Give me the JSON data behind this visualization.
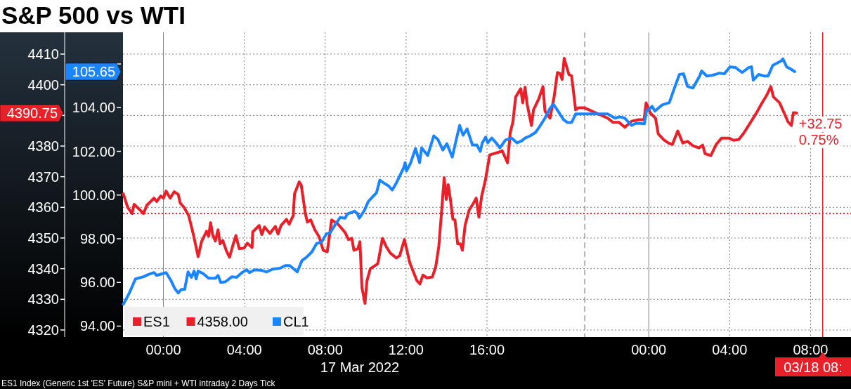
{
  "chart_data": {
    "type": "line",
    "title": "S&P 500 vs WTI",
    "xlabel": "17 Mar 2022",
    "xlim": [
      "2022-03-16T22:00",
      "2022-03-18T10:00"
    ],
    "xticks": [
      {
        "value": "2022-03-17T00:00",
        "label": "00:00"
      },
      {
        "value": "2022-03-17T04:00",
        "label": "04:00"
      },
      {
        "value": "2022-03-17T08:00",
        "label": "08:00"
      },
      {
        "value": "2022-03-17T12:00",
        "label": "12:00"
      },
      {
        "value": "2022-03-17T16:00",
        "label": "16:00"
      },
      {
        "value": "2022-03-18T00:00",
        "label": "00:00"
      },
      {
        "value": "2022-03-18T04:00",
        "label": "04:00"
      },
      {
        "value": "2022-03-18T08:00",
        "label": "08:00"
      }
    ],
    "ylim": [
      4317.7,
      4417.1
    ],
    "yticks": [
      4320,
      4330,
      4340,
      4350,
      4360,
      4370,
      4380,
      {
        "value": 4390,
        "label": null
      },
      4400,
      4410
    ],
    "y2lim": [
      93.5,
      107.45
    ],
    "y2ticks": [
      {
        "value": 94,
        "label": "94.00"
      },
      {
        "value": 96,
        "label": "96.00"
      },
      {
        "value": 98,
        "label": "98.00"
      },
      {
        "value": 100,
        "label": "100.00"
      },
      {
        "value": 102,
        "label": "102.00"
      },
      {
        "value": 104,
        "label": "104.00"
      },
      {
        "value": 106,
        "label": null
      }
    ],
    "grid": true,
    "legend": "bottom left",
    "line_style": "solid",
    "marker": "none",
    "series": [
      {
        "name": "ES1",
        "color": "#e8202a",
        "x": [
          "2022-03-16T22:01",
          "2022-03-16T22:14",
          "2022-03-16T22:27",
          "2022-03-16T22:33",
          "2022-03-16T22:51",
          "2022-03-16T23:01",
          "2022-03-16T23:11",
          "2022-03-16T23:32",
          "2022-03-16T23:40",
          "2022-03-16T23:52",
          "2022-03-17T00:00",
          "2022-03-17T00:08",
          "2022-03-17T00:20",
          "2022-03-17T00:32",
          "2022-03-17T00:44",
          "2022-03-17T00:50",
          "2022-03-17T01:01",
          "2022-03-17T01:15",
          "2022-03-17T01:29",
          "2022-03-17T01:43",
          "2022-03-17T01:53",
          "2022-03-17T02:08",
          "2022-03-17T02:14",
          "2022-03-17T02:20",
          "2022-03-17T02:26",
          "2022-03-17T02:34",
          "2022-03-17T02:42",
          "2022-03-17T02:48",
          "2022-03-17T02:56",
          "2022-03-17T03:07",
          "2022-03-17T03:16",
          "2022-03-17T03:26",
          "2022-03-17T03:35",
          "2022-03-17T03:45",
          "2022-03-17T03:59",
          "2022-03-17T04:09",
          "2022-03-17T04:23",
          "2022-03-17T04:25",
          "2022-03-17T04:44",
          "2022-03-17T04:52",
          "2022-03-17T05:00",
          "2022-03-17T05:16",
          "2022-03-17T05:32",
          "2022-03-17T05:40",
          "2022-03-17T05:49",
          "2022-03-17T06:05",
          "2022-03-17T06:13",
          "2022-03-17T06:25",
          "2022-03-17T06:29",
          "2022-03-17T06:43",
          "2022-03-17T06:49",
          "2022-03-17T07:01",
          "2022-03-17T07:07",
          "2022-03-17T07:17",
          "2022-03-17T07:29",
          "2022-03-17T07:42",
          "2022-03-17T07:54",
          "2022-03-17T08:06",
          "2022-03-17T08:19",
          "2022-03-17T08:38",
          "2022-03-17T08:59",
          "2022-03-17T09:09",
          "2022-03-17T09:19",
          "2022-03-17T09:25",
          "2022-03-17T09:37",
          "2022-03-17T09:43",
          "2022-03-17T09:49",
          "2022-03-17T09:58",
          "2022-03-17T10:04",
          "2022-03-17T10:14",
          "2022-03-17T10:36",
          "2022-03-17T10:50",
          "2022-03-17T11:01",
          "2022-03-17T11:13",
          "2022-03-17T11:31",
          "2022-03-17T11:41",
          "2022-03-17T11:55",
          "2022-03-17T12:11",
          "2022-03-17T12:32",
          "2022-03-17T12:41",
          "2022-03-17T12:50",
          "2022-03-17T13:02",
          "2022-03-17T13:18",
          "2022-03-17T13:28",
          "2022-03-17T13:37",
          "2022-03-17T13:44",
          "2022-03-17T13:53",
          "2022-03-17T13:59",
          "2022-03-17T14:05",
          "2022-03-17T14:11",
          "2022-03-17T14:19",
          "2022-03-17T14:25",
          "2022-03-17T14:33",
          "2022-03-17T14:41",
          "2022-03-17T14:47",
          "2022-03-17T14:55",
          "2022-03-17T15:07",
          "2022-03-17T15:20",
          "2022-03-17T15:28",
          "2022-03-17T15:36",
          "2022-03-17T15:44",
          "2022-03-17T15:56",
          "2022-03-17T16:08",
          "2022-03-17T16:35",
          "2022-03-17T16:45",
          "2022-03-17T17:01",
          "2022-03-17T17:09",
          "2022-03-17T17:17",
          "2022-03-17T17:25",
          "2022-03-17T17:40",
          "2022-03-17T17:46",
          "2022-03-17T17:53",
          "2022-03-17T17:59",
          "2022-03-17T18:12",
          "2022-03-17T18:18",
          "2022-03-17T18:34",
          "2022-03-17T18:46",
          "2022-03-17T18:52",
          "2022-03-17T19:07",
          "2022-03-17T19:19",
          "2022-03-17T19:29",
          "2022-03-17T19:37",
          "2022-03-17T19:43",
          "2022-03-17T19:49",
          "2022-03-17T20:03",
          "2022-03-17T20:11",
          "2022-03-17T20:23",
          "2022-03-17T20:32",
          "2022-03-17T20:48",
          "2022-03-17T21:58",
          "2022-03-17T22:14",
          "2022-03-17T22:32",
          "2022-03-17T22:49",
          "2022-03-17T23:09",
          "2022-03-17T23:29",
          "2022-03-17T23:46",
          "2022-03-17T23:52",
          "2022-03-18T00:05",
          "2022-03-18T00:20",
          "2022-03-18T00:28",
          "2022-03-18T00:44",
          "2022-03-18T00:58",
          "2022-03-18T01:10",
          "2022-03-18T01:26",
          "2022-03-18T01:41",
          "2022-03-18T01:55",
          "2022-03-18T02:11",
          "2022-03-18T02:29",
          "2022-03-18T02:40",
          "2022-03-18T02:47",
          "2022-03-18T03:04",
          "2022-03-18T03:20",
          "2022-03-18T03:36",
          "2022-03-18T03:58",
          "2022-03-18T04:11",
          "2022-03-18T04:27",
          "2022-03-18T04:43",
          "2022-03-18T04:59",
          "2022-03-18T05:20",
          "2022-03-18T05:34",
          "2022-03-18T05:50",
          "2022-03-18T06:02",
          "2022-03-18T06:10",
          "2022-03-18T06:28",
          "2022-03-18T06:44",
          "2022-03-18T06:53",
          "2022-03-18T07:03",
          "2022-03-18T07:09",
          "2022-03-18T07:19"
        ],
        "values": [
          4364.4,
          4360.0,
          4358.0,
          4361.0,
          4359.1,
          4358.0,
          4360.7,
          4363.0,
          4361.9,
          4363.7,
          4363.0,
          4365.3,
          4363.0,
          4365.1,
          4364.2,
          4361.4,
          4360.0,
          4357.3,
          4351.1,
          4343.9,
          4348.8,
          4352.2,
          4350.6,
          4355.0,
          4351.1,
          4349.0,
          4352.7,
          4348.1,
          4349.2,
          4345.8,
          4343.7,
          4347.6,
          4350.8,
          4346.5,
          4346.7,
          4348.3,
          4346.9,
          4352.0,
          4354.1,
          4351.1,
          4353.6,
          4351.5,
          4353.8,
          4351.3,
          4354.1,
          4356.1,
          4354.5,
          4357.3,
          4364.4,
          4368.3,
          4367.2,
          4358.0,
          4355.2,
          4355.9,
          4352.7,
          4350.4,
          4346.0,
          4345.5,
          4355.9,
          4354.5,
          4351.8,
          4349.5,
          4349.9,
          4346.0,
          4346.5,
          4348.8,
          4333.8,
          4328.7,
          4336.1,
          4340.0,
          4341.6,
          4349.9,
          4347.2,
          4345.1,
          4343.5,
          4344.2,
          4349.5,
          4341.9,
          4336.1,
          4335.0,
          4337.9,
          4337.0,
          4337.3,
          4340.7,
          4347.2,
          4356.8,
          4369.7,
          4362.6,
          4367.4,
          4363.0,
          4356.1,
          4355.9,
          4348.1,
          4348.1,
          4346.0,
          4354.1,
          4359.1,
          4361.4,
          4363.0,
          4356.8,
          4363.5,
          4369.3,
          4377.1,
          4378.0,
          4378.5,
          4374.5,
          4384.4,
          4387.9,
          4396.0,
          4398.7,
          4394.1,
          4399.2,
          4393.7,
          4386.7,
          4391.8,
          4395.5,
          4399.4,
          4391.4,
          4389.1,
          4396.0,
          4404.0,
          4403.6,
          4401.7,
          4408.6,
          4403.3,
          4402.9,
          4391.8,
          4392.5,
          4392.5,
          4389.1,
          4387.7,
          4387.7,
          4386.1,
          4388.1,
          4388.6,
          4388.6,
          4394.1,
          4390.7,
          4389.1,
          4384.0,
          4382.1,
          4381.0,
          4380.5,
          4384.9,
          4381.0,
          4381.5,
          4380.1,
          4379.4,
          4380.3,
          4377.5,
          4376.9,
          4380.5,
          4382.6,
          4382.6,
          4381.9,
          4382.1,
          4384.4,
          4387.2,
          4390.9,
          4393.7,
          4396.6,
          4399.4,
          4396.0,
          4394.1,
          4390.2,
          4387.9,
          4386.7,
          4390.9,
          4390.75
        ]
      },
      {
        "name": "CL1",
        "color": "#1a85ff",
        "axis": "y2",
        "x": [
          "2022-03-16T22:01",
          "2022-03-16T22:19",
          "2022-03-16T22:37",
          "2022-03-16T23:01",
          "2022-03-16T23:13",
          "2022-03-16T23:32",
          "2022-03-16T23:40",
          "2022-03-17T00:08",
          "2022-03-17T00:22",
          "2022-03-17T00:34",
          "2022-03-17T00:44",
          "2022-03-17T00:53",
          "2022-03-17T01:03",
          "2022-03-17T01:13",
          "2022-03-17T01:23",
          "2022-03-17T01:31",
          "2022-03-17T01:37",
          "2022-03-17T01:43",
          "2022-03-17T01:59",
          "2022-03-17T02:14",
          "2022-03-17T02:34",
          "2022-03-17T02:42",
          "2022-03-17T02:50",
          "2022-03-17T03:04",
          "2022-03-17T03:23",
          "2022-03-17T03:37",
          "2022-03-17T03:53",
          "2022-03-17T04:07",
          "2022-03-17T04:15",
          "2022-03-17T04:31",
          "2022-03-17T04:52",
          "2022-03-17T05:06",
          "2022-03-17T05:24",
          "2022-03-17T05:46",
          "2022-03-17T06:01",
          "2022-03-17T06:15",
          "2022-03-17T06:37",
          "2022-03-17T06:51",
          "2022-03-17T07:05",
          "2022-03-17T07:20",
          "2022-03-17T07:34",
          "2022-03-17T07:50",
          "2022-03-17T08:04",
          "2022-03-17T08:14",
          "2022-03-17T08:31",
          "2022-03-17T08:44",
          "2022-03-17T08:59",
          "2022-03-17T09:05",
          "2022-03-17T09:27",
          "2022-03-17T09:35",
          "2022-03-17T09:41",
          "2022-03-17T09:56",
          "2022-03-17T10:08",
          "2022-03-17T10:22",
          "2022-03-17T10:32",
          "2022-03-17T10:42",
          "2022-03-17T10:54",
          "2022-03-17T11:08",
          "2022-03-17T11:19",
          "2022-03-17T11:31",
          "2022-03-17T11:41",
          "2022-03-17T11:53",
          "2022-03-17T11:57",
          "2022-03-17T12:01",
          "2022-03-17T12:13",
          "2022-03-17T12:28",
          "2022-03-17T12:40",
          "2022-03-17T12:46",
          "2022-03-17T13:04",
          "2022-03-17T13:22",
          "2022-03-17T13:34",
          "2022-03-17T13:49",
          "2022-03-17T14:01",
          "2022-03-17T14:17",
          "2022-03-17T14:31",
          "2022-03-17T14:39",
          "2022-03-17T14:49",
          "2022-03-17T15:01",
          "2022-03-17T15:17",
          "2022-03-17T15:30",
          "2022-03-17T15:40",
          "2022-03-17T15:46",
          "2022-03-17T15:56",
          "2022-03-17T16:02",
          "2022-03-17T16:14",
          "2022-03-17T16:29",
          "2022-03-17T16:38",
          "2022-03-17T16:55",
          "2022-03-17T17:13",
          "2022-03-17T17:29",
          "2022-03-17T17:43",
          "2022-03-17T17:53",
          "2022-03-17T18:08",
          "2022-03-17T18:24",
          "2022-03-17T18:36",
          "2022-03-17T18:52",
          "2022-03-17T19:07",
          "2022-03-17T19:17",
          "2022-03-17T19:31",
          "2022-03-17T19:47",
          "2022-03-17T19:59",
          "2022-03-17T20:11",
          "2022-03-17T20:23",
          "2022-03-17T20:38",
          "2022-03-17T21:58",
          "2022-03-17T22:20",
          "2022-03-17T22:34",
          "2022-03-17T22:49",
          "2022-03-17T23:09",
          "2022-03-17T23:23",
          "2022-03-17T23:47",
          "2022-03-17T23:53",
          "2022-03-18T00:10",
          "2022-03-18T00:18",
          "2022-03-18T00:40",
          "2022-03-18T01:01",
          "2022-03-18T01:17",
          "2022-03-18T01:31",
          "2022-03-18T01:43",
          "2022-03-18T01:55",
          "2022-03-18T02:11",
          "2022-03-18T02:31",
          "2022-03-18T02:37",
          "2022-03-18T02:52",
          "2022-03-18T03:08",
          "2022-03-18T03:30",
          "2022-03-18T03:44",
          "2022-03-18T04:01",
          "2022-03-18T04:17",
          "2022-03-18T04:37",
          "2022-03-18T04:57",
          "2022-03-18T05:05",
          "2022-03-18T05:10",
          "2022-03-18T05:26",
          "2022-03-18T05:42",
          "2022-03-18T05:54",
          "2022-03-18T06:08",
          "2022-03-18T06:32",
          "2022-03-18T06:38",
          "2022-03-18T06:49",
          "2022-03-18T07:01",
          "2022-03-18T07:13"
        ],
        "values": [
          95.0,
          95.52,
          96.16,
          96.26,
          96.35,
          96.45,
          96.32,
          96.45,
          96.1,
          95.71,
          95.52,
          95.68,
          95.68,
          96.48,
          96.23,
          96.52,
          96.16,
          96.52,
          96.39,
          96.19,
          96.19,
          96.32,
          96.0,
          96.03,
          96.26,
          96.23,
          96.45,
          96.58,
          96.45,
          96.58,
          96.55,
          96.48,
          96.61,
          96.65,
          96.77,
          96.77,
          96.48,
          97.0,
          97.16,
          97.39,
          97.77,
          97.87,
          98.23,
          98.26,
          98.68,
          98.97,
          98.94,
          99.13,
          99.26,
          99.16,
          98.94,
          99.29,
          99.71,
          99.94,
          100.1,
          100.68,
          100.55,
          100.42,
          100.23,
          100.55,
          100.87,
          101.26,
          101.48,
          101.1,
          101.45,
          102.13,
          101.48,
          102.16,
          101.81,
          102.71,
          102.55,
          102.06,
          102.35,
          101.74,
          102.68,
          103.19,
          102.74,
          103.03,
          102.29,
          102.29,
          102.0,
          102.39,
          102.65,
          102.39,
          102.61,
          102.35,
          102.16,
          102.52,
          102.61,
          102.39,
          102.48,
          102.61,
          102.71,
          102.87,
          103.13,
          103.52,
          103.97,
          104.16,
          103.84,
          103.45,
          103.32,
          103.32,
          103.71,
          103.71,
          103.71,
          103.52,
          103.58,
          103.52,
          103.19,
          103.29,
          103.26,
          103.84,
          104.06,
          103.84,
          104.13,
          104.23,
          104.94,
          105.52,
          105.55,
          104.97,
          104.9,
          105.45,
          105.68,
          105.45,
          105.48,
          105.58,
          105.55,
          105.87,
          105.84,
          105.61,
          105.84,
          105.87,
          105.26,
          105.52,
          105.45,
          105.45,
          105.94,
          106.13,
          106.23,
          105.87,
          105.77,
          105.65
        ]
      }
    ],
    "ref_lines": [
      {
        "axis": "y",
        "value": 4358,
        "label": "4358.00",
        "color": "#e8202a",
        "line_style": "dotted"
      },
      {
        "axis": "x",
        "value": "2022-03-17T20:50",
        "color": "#808080",
        "line_style": "dashed"
      },
      {
        "axis": "x",
        "value": "2022-03-18T08:36",
        "label": "03/18 08:",
        "color": "#e8202a",
        "line_style": "solid"
      }
    ],
    "annotations": [
      "4390.75",
      "105.65",
      {
        "text": "+32.75",
        "x": "2022-03-18T07:19",
        "y": 4390.75
      },
      {
        "text": "0.75%",
        "x": "2022-03-18T07:19",
        "y": 4390.75
      },
      "ES1 Index (Generic 1st 'ES' Future) S&P mini + WTI intraday 2 Days  Tick"
    ]
  }
}
